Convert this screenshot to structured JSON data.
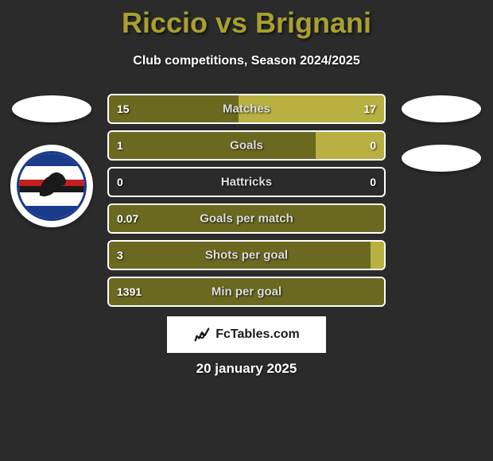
{
  "title": "Riccio vs Brignani",
  "subtitle": "Club competitions, Season 2024/2025",
  "date": "20 january 2025",
  "branding": "FcTables.com",
  "colors": {
    "title_color": "#a8a030",
    "background": "#2b2b2b",
    "bar_border": "#ffffff",
    "bar_dark": "#6b6920",
    "bar_light": "#b8b040",
    "text": "#ffffff"
  },
  "stats": [
    {
      "label": "Matches",
      "left_value": "15",
      "right_value": "17",
      "left_pct": 47,
      "right_pct": 53,
      "left_color": "dark-olive",
      "right_color": "light-olive"
    },
    {
      "label": "Goals",
      "left_value": "1",
      "right_value": "0",
      "left_pct": 75,
      "right_pct": 25,
      "left_color": "dark-olive",
      "right_color": "light-olive"
    },
    {
      "label": "Hattricks",
      "left_value": "0",
      "right_value": "0",
      "left_pct": 0,
      "right_pct": 0,
      "left_color": "dark-olive",
      "right_color": "light-olive"
    },
    {
      "label": "Goals per match",
      "left_value": "0.07",
      "right_value": "",
      "left_pct": 100,
      "right_pct": 0,
      "left_color": "dark-olive",
      "right_color": "light-olive"
    },
    {
      "label": "Shots per goal",
      "left_value": "3",
      "right_value": "",
      "left_pct": 95,
      "right_pct": 5,
      "left_color": "dark-olive",
      "right_color": "light-olive"
    },
    {
      "label": "Min per goal",
      "left_value": "1391",
      "right_value": "",
      "left_pct": 100,
      "right_pct": 0,
      "left_color": "dark-olive",
      "right_color": "light-olive"
    }
  ]
}
